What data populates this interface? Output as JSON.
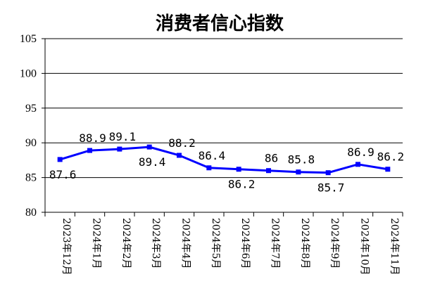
{
  "chart_data": {
    "type": "line",
    "title": "消费者信心指数",
    "xlabel": "",
    "ylabel": "",
    "ylim": [
      80,
      105
    ],
    "yticks": [
      80,
      85,
      90,
      95,
      100,
      105
    ],
    "grid": true,
    "legend": "none",
    "categories": [
      "2023年12月",
      "2024年1月",
      "2024年2月",
      "2024年3月",
      "2024年4月",
      "2024年5月",
      "2024年6月",
      "2024年7月",
      "2024年8月",
      "2024年9月",
      "2024年10月",
      "2024年11月"
    ],
    "series": [
      {
        "values": [
          87.6,
          88.9,
          89.1,
          89.4,
          88.2,
          86.4,
          86.2,
          86.0,
          85.8,
          85.7,
          86.9,
          86.2
        ],
        "labels": [
          "87.6",
          "88.9",
          "89.1",
          "89.4",
          "88.2",
          "86.4",
          "86.2",
          "86",
          "85.8",
          "85.7",
          "86.9",
          "86.2"
        ],
        "label_position": [
          "below",
          "above",
          "above",
          "below",
          "above",
          "above",
          "below",
          "above",
          "above",
          "below",
          "above",
          "above"
        ],
        "color": "#0000ff"
      }
    ]
  }
}
